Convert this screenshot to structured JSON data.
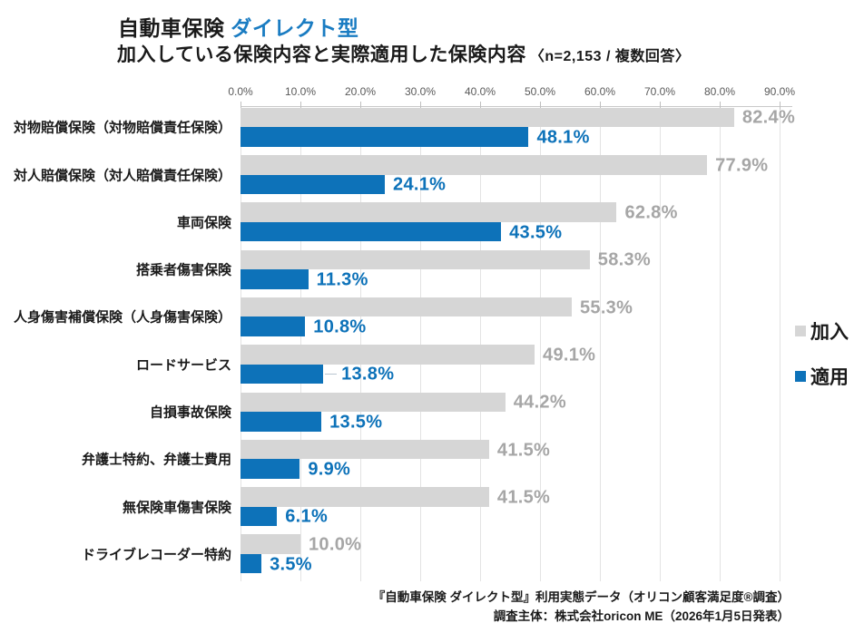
{
  "title": {
    "black": "自動車保険",
    "blue": "ダイレクト型"
  },
  "subtitle": {
    "main": "加入している保険内容と実際適用した保険内容",
    "note": "〈n=2,153 / 複数回答〉"
  },
  "chart_data": {
    "type": "bar",
    "orientation": "horizontal",
    "title": "加入している保険内容と実際適用した保険内容",
    "sample_note": "n=2,153 / 複数回答",
    "categories": [
      "対物賠償保険（対物賠償責任保険）",
      "対人賠償保険（対人賠償責任保険）",
      "車両保険",
      "搭乗者傷害保険",
      "人身傷害補償保険（人身傷害保険）",
      "ロードサービス",
      "自損事故保険",
      "弁護士特約、弁護士費用",
      "無保険車傷害保険",
      "ドライブレコーダー特約"
    ],
    "series": [
      {
        "name": "加入",
        "color": "#d6d6d6",
        "values": [
          82.4,
          77.9,
          62.8,
          58.3,
          55.3,
          49.1,
          44.2,
          41.5,
          41.5,
          10.0
        ]
      },
      {
        "name": "適用",
        "color": "#0d72b9",
        "values": [
          48.1,
          24.1,
          43.5,
          11.3,
          10.8,
          13.8,
          13.5,
          9.9,
          6.1,
          3.5
        ]
      }
    ],
    "x_ticks": [
      "0.0%",
      "10.0%",
      "20.0%",
      "30.0%",
      "40.0%",
      "50.0%",
      "60.0%",
      "70.0%",
      "80.0%",
      "90.0%"
    ],
    "xlim": [
      0,
      90
    ],
    "value_suffix": "%",
    "grid": true,
    "legend_position": "right",
    "leader_line_rows": [
      5
    ]
  },
  "legend": {
    "items": [
      {
        "label": "加入",
        "color": "#d6d6d6"
      },
      {
        "label": "適用",
        "color": "#0d72b9"
      }
    ]
  },
  "footer": {
    "line1": "『自動車保険 ダイレクト型』利用実態データ（オリコン顧客満足度®調査）",
    "line2": "調査主体：株式会社oricon ME（2026年1月5日発表）"
  },
  "colors": {
    "bar_gray": "#d6d6d6",
    "bar_blue": "#0d72b9",
    "value_gray": "#a6a6a6",
    "title_blue": "#1a7cc2",
    "grid": "#e3e3e3"
  }
}
